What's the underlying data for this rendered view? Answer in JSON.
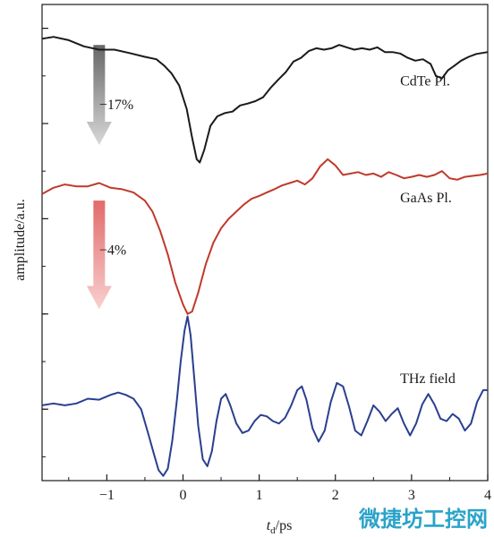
{
  "chart_data": {
    "type": "line",
    "xlabel": {
      "var": "t",
      "sub": "d",
      "unit": "/ps"
    },
    "ylabel": "amplitude/a.u.",
    "xlim": [
      -1.85,
      4.0
    ],
    "ylim": [
      0,
      10
    ],
    "xticks": [
      -1,
      0,
      1,
      2,
      3,
      4
    ],
    "x_tick_labels": [
      "−1",
      "0",
      "1",
      "2",
      "3",
      "4"
    ],
    "yticks": [
      1.5,
      3.5,
      5.5,
      7.5,
      9.5
    ],
    "grid": false,
    "legend": "none",
    "series": [
      {
        "name": "CdTe Pl.",
        "color": "#1a1a1a",
        "points": [
          [
            -1.85,
            9.28
          ],
          [
            -1.7,
            9.32
          ],
          [
            -1.5,
            9.25
          ],
          [
            -1.3,
            9.12
          ],
          [
            -1.1,
            9.05
          ],
          [
            -0.9,
            9.05
          ],
          [
            -0.7,
            8.98
          ],
          [
            -0.5,
            8.9
          ],
          [
            -0.35,
            8.85
          ],
          [
            -0.25,
            8.72
          ],
          [
            -0.15,
            8.55
          ],
          [
            -0.05,
            8.3
          ],
          [
            0.05,
            7.8
          ],
          [
            0.12,
            7.2
          ],
          [
            0.18,
            6.75
          ],
          [
            0.22,
            6.68
          ],
          [
            0.28,
            6.95
          ],
          [
            0.36,
            7.45
          ],
          [
            0.45,
            7.65
          ],
          [
            0.55,
            7.72
          ],
          [
            0.65,
            7.75
          ],
          [
            0.75,
            7.88
          ],
          [
            0.85,
            7.92
          ],
          [
            0.95,
            7.97
          ],
          [
            1.05,
            8.05
          ],
          [
            1.15,
            8.25
          ],
          [
            1.25,
            8.42
          ],
          [
            1.35,
            8.58
          ],
          [
            1.45,
            8.8
          ],
          [
            1.55,
            8.88
          ],
          [
            1.65,
            9.02
          ],
          [
            1.75,
            9.08
          ],
          [
            1.85,
            9.05
          ],
          [
            1.95,
            9.08
          ],
          [
            2.05,
            9.15
          ],
          [
            2.15,
            9.1
          ],
          [
            2.25,
            9.05
          ],
          [
            2.35,
            9.08
          ],
          [
            2.45,
            9.05
          ],
          [
            2.55,
            9.1
          ],
          [
            2.65,
            9.0
          ],
          [
            2.75,
            9.0
          ],
          [
            2.85,
            8.97
          ],
          [
            2.95,
            8.88
          ],
          [
            3.05,
            8.82
          ],
          [
            3.15,
            8.85
          ],
          [
            3.25,
            8.75
          ],
          [
            3.32,
            8.5
          ],
          [
            3.4,
            8.45
          ],
          [
            3.48,
            8.62
          ],
          [
            3.55,
            8.7
          ],
          [
            3.65,
            8.82
          ],
          [
            3.75,
            8.9
          ],
          [
            3.85,
            8.96
          ],
          [
            4.0,
            9.0
          ]
        ]
      },
      {
        "name": "GaAs Pl.",
        "color": "#c0392b",
        "points": [
          [
            -1.85,
            6.02
          ],
          [
            -1.7,
            6.15
          ],
          [
            -1.55,
            6.22
          ],
          [
            -1.4,
            6.18
          ],
          [
            -1.25,
            6.18
          ],
          [
            -1.1,
            6.25
          ],
          [
            -0.95,
            6.15
          ],
          [
            -0.8,
            6.12
          ],
          [
            -0.65,
            6.05
          ],
          [
            -0.5,
            5.88
          ],
          [
            -0.4,
            5.65
          ],
          [
            -0.3,
            5.25
          ],
          [
            -0.2,
            4.75
          ],
          [
            -0.1,
            4.15
          ],
          [
            0.0,
            3.7
          ],
          [
            0.06,
            3.5
          ],
          [
            0.12,
            3.55
          ],
          [
            0.2,
            3.95
          ],
          [
            0.3,
            4.55
          ],
          [
            0.4,
            5.0
          ],
          [
            0.5,
            5.3
          ],
          [
            0.6,
            5.5
          ],
          [
            0.7,
            5.65
          ],
          [
            0.8,
            5.8
          ],
          [
            0.9,
            5.92
          ],
          [
            1.0,
            5.98
          ],
          [
            1.1,
            6.05
          ],
          [
            1.2,
            6.12
          ],
          [
            1.3,
            6.2
          ],
          [
            1.4,
            6.25
          ],
          [
            1.5,
            6.3
          ],
          [
            1.6,
            6.22
          ],
          [
            1.7,
            6.35
          ],
          [
            1.8,
            6.6
          ],
          [
            1.9,
            6.75
          ],
          [
            2.0,
            6.62
          ],
          [
            2.1,
            6.42
          ],
          [
            2.2,
            6.45
          ],
          [
            2.3,
            6.48
          ],
          [
            2.4,
            6.42
          ],
          [
            2.5,
            6.45
          ],
          [
            2.6,
            6.38
          ],
          [
            2.7,
            6.48
          ],
          [
            2.8,
            6.42
          ],
          [
            2.9,
            6.35
          ],
          [
            3.0,
            6.38
          ],
          [
            3.1,
            6.42
          ],
          [
            3.2,
            6.38
          ],
          [
            3.3,
            6.42
          ],
          [
            3.4,
            6.5
          ],
          [
            3.5,
            6.35
          ],
          [
            3.6,
            6.32
          ],
          [
            3.7,
            6.38
          ],
          [
            3.8,
            6.4
          ],
          [
            3.9,
            6.42
          ],
          [
            4.0,
            6.45
          ]
        ]
      },
      {
        "name": "THz field",
        "color": "#2a3f8f",
        "points": [
          [
            -1.85,
            1.58
          ],
          [
            -1.7,
            1.62
          ],
          [
            -1.55,
            1.58
          ],
          [
            -1.4,
            1.62
          ],
          [
            -1.25,
            1.72
          ],
          [
            -1.1,
            1.7
          ],
          [
            -0.95,
            1.8
          ],
          [
            -0.85,
            1.85
          ],
          [
            -0.75,
            1.8
          ],
          [
            -0.65,
            1.72
          ],
          [
            -0.55,
            1.5
          ],
          [
            -0.45,
            0.95
          ],
          [
            -0.38,
            0.55
          ],
          [
            -0.32,
            0.22
          ],
          [
            -0.26,
            0.1
          ],
          [
            -0.2,
            0.25
          ],
          [
            -0.14,
            0.85
          ],
          [
            -0.08,
            1.7
          ],
          [
            -0.03,
            2.5
          ],
          [
            0.02,
            3.15
          ],
          [
            0.06,
            3.45
          ],
          [
            0.1,
            3.05
          ],
          [
            0.15,
            2.1
          ],
          [
            0.2,
            1.15
          ],
          [
            0.26,
            0.45
          ],
          [
            0.32,
            0.3
          ],
          [
            0.38,
            0.62
          ],
          [
            0.44,
            1.25
          ],
          [
            0.5,
            1.72
          ],
          [
            0.56,
            1.82
          ],
          [
            0.62,
            1.58
          ],
          [
            0.7,
            1.2
          ],
          [
            0.78,
            1.0
          ],
          [
            0.86,
            1.05
          ],
          [
            0.94,
            1.25
          ],
          [
            1.02,
            1.38
          ],
          [
            1.1,
            1.35
          ],
          [
            1.18,
            1.25
          ],
          [
            1.26,
            1.2
          ],
          [
            1.34,
            1.32
          ],
          [
            1.42,
            1.58
          ],
          [
            1.5,
            1.9
          ],
          [
            1.56,
            1.98
          ],
          [
            1.62,
            1.7
          ],
          [
            1.7,
            1.1
          ],
          [
            1.78,
            0.82
          ],
          [
            1.86,
            1.05
          ],
          [
            1.94,
            1.65
          ],
          [
            2.02,
            2.05
          ],
          [
            2.1,
            1.98
          ],
          [
            2.18,
            1.55
          ],
          [
            2.26,
            1.05
          ],
          [
            2.34,
            0.95
          ],
          [
            2.42,
            1.25
          ],
          [
            2.5,
            1.58
          ],
          [
            2.58,
            1.45
          ],
          [
            2.66,
            1.25
          ],
          [
            2.74,
            1.4
          ],
          [
            2.82,
            1.52
          ],
          [
            2.9,
            1.2
          ],
          [
            2.98,
            0.95
          ],
          [
            3.06,
            1.2
          ],
          [
            3.14,
            1.6
          ],
          [
            3.22,
            1.82
          ],
          [
            3.3,
            1.6
          ],
          [
            3.38,
            1.3
          ],
          [
            3.46,
            1.25
          ],
          [
            3.54,
            1.4
          ],
          [
            3.62,
            1.3
          ],
          [
            3.7,
            1.05
          ],
          [
            3.78,
            1.2
          ],
          [
            3.86,
            1.65
          ],
          [
            3.94,
            1.9
          ],
          [
            4.0,
            1.9
          ]
        ]
      }
    ],
    "annotations": [
      {
        "text": "CdTe Pl.",
        "x": 2.85,
        "y": 8.3
      },
      {
        "text": "GaAs Pl.",
        "x": 2.85,
        "y": 5.85
      },
      {
        "text": "THz field",
        "x": 2.85,
        "y": 2.05
      },
      {
        "text": "−17%",
        "x": -1.1,
        "y": 7.8
      },
      {
        "text": "−4%",
        "x": -1.1,
        "y": 4.75
      }
    ],
    "arrows": [
      {
        "name": "cdte-reduction-arrow",
        "color": "#7a7a7a",
        "x": -1.1,
        "y_start": 9.15,
        "y_end": 7.05
      },
      {
        "name": "gaas-reduction-arrow",
        "color": "#e26a6a",
        "x": -1.1,
        "y_start": 5.88,
        "y_end": 3.6
      }
    ]
  },
  "watermark": {
    "text": "微捷坊工控网",
    "color": "#2aa3c9"
  }
}
